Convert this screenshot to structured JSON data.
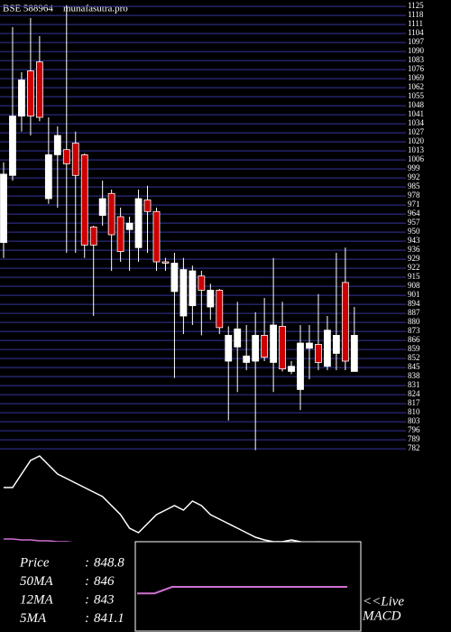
{
  "chart_data": {
    "type": "candlestick",
    "title": "BSE 588964",
    "subtitle": "munafasutra.pro",
    "up_color": "#ffffff",
    "down_color": "#cc0000",
    "grid": true,
    "grid_color": "#2a2a80",
    "ylim": [
      780,
      1126.5
    ],
    "yticks": [
      782,
      789,
      796,
      803,
      810,
      817,
      824,
      831,
      838,
      845,
      852,
      859,
      866,
      873,
      880,
      887,
      894,
      901,
      908,
      915,
      922,
      929,
      936,
      943,
      950,
      957,
      964,
      971,
      978,
      985,
      992,
      999,
      1006,
      1013,
      1020,
      1027,
      1034,
      1041,
      1048,
      1055,
      1062,
      1069,
      1076,
      1083,
      1090,
      1097,
      1104,
      1111,
      1118,
      1125
    ],
    "open": [
      942,
      994,
      1040,
      1075,
      1082,
      976,
      1010,
      1014,
      1019,
      1010,
      954,
      963,
      980,
      962,
      952,
      938,
      975,
      966,
      927,
      904,
      885,
      893,
      916,
      892,
      905,
      850,
      861,
      849,
      850,
      870,
      849,
      877,
      842,
      828,
      860,
      863,
      846,
      856,
      911,
      842
    ],
    "high": [
      1004,
      1109,
      1074,
      1116,
      1102,
      1039,
      1032,
      1126,
      1028,
      1011,
      955,
      990,
      983,
      969,
      962,
      983,
      986,
      969,
      930,
      934,
      930,
      924,
      920,
      910,
      906,
      877,
      896,
      878,
      888,
      899,
      930,
      896,
      850,
      878,
      878,
      902,
      885,
      934,
      938,
      892
    ],
    "low": [
      930,
      990,
      1028,
      1025,
      1036,
      972,
      969,
      934,
      934,
      930,
      885,
      955,
      920,
      927,
      920,
      927,
      934,
      920,
      920,
      837,
      871,
      878,
      870,
      882,
      871,
      804,
      826,
      843,
      781,
      850,
      826,
      842,
      840,
      812,
      836,
      843,
      843,
      843,
      843,
      842
    ],
    "close": [
      995,
      1040,
      1068,
      1040,
      1039,
      1010,
      1025,
      1003,
      994,
      940,
      940,
      976,
      948,
      935,
      957,
      976,
      966,
      927,
      926,
      926,
      921,
      920,
      905,
      905,
      876,
      870,
      875,
      854,
      870,
      853,
      878,
      844,
      846,
      864,
      864,
      849,
      874,
      870,
      850,
      870
    ],
    "indicator_panel": {
      "ylim": [
        0,
        195
      ],
      "lines": [
        {
          "color": "#ffffff",
          "values": [
            160,
            160,
            175,
            190,
            195,
            185,
            175,
            170,
            165,
            160,
            155,
            150,
            140,
            130,
            115,
            110,
            120,
            130,
            135,
            140,
            135,
            145,
            140,
            130,
            125,
            120,
            115,
            110,
            105,
            102,
            100,
            100,
            102,
            100,
            98,
            100,
            95,
            95,
            98,
            96
          ]
        },
        {
          "color": "#d070d0",
          "values": [
            103,
            103,
            102,
            102,
            101,
            101,
            100,
            100,
            99,
            99,
            98,
            98,
            97,
            97,
            96,
            96,
            95,
            95,
            95,
            95,
            95,
            95,
            95,
            95,
            95,
            95,
            95,
            95,
            95,
            95,
            95,
            95,
            95,
            95,
            95,
            95,
            95,
            96,
            97,
            98
          ]
        },
        {
          "color": "#3030ff",
          "values": [
            98,
            98,
            97,
            97,
            96,
            96,
            95,
            95,
            94,
            94,
            94,
            93,
            93,
            93,
            93,
            93,
            93,
            93,
            93,
            93,
            93,
            93,
            94,
            94,
            95,
            96,
            97,
            97,
            97,
            96,
            96,
            96,
            96,
            96,
            95,
            95,
            95,
            95,
            96,
            97
          ]
        }
      ]
    },
    "macd_panel": {
      "ylim": [
        -50,
        50
      ],
      "color": "#d070d0",
      "values": [
        -8,
        -8,
        0,
        0,
        0,
        0,
        0,
        0,
        0,
        0,
        0,
        0,
        0
      ]
    },
    "info": [
      {
        "label": "Price",
        "value": 848.8
      },
      {
        "label": "50MA",
        "value": 846
      },
      {
        "label": "12MA",
        "value": 843
      },
      {
        "label": "5MA",
        "value": 841.1
      }
    ],
    "live_label": "<<Live",
    "macd_label": "MACD"
  }
}
